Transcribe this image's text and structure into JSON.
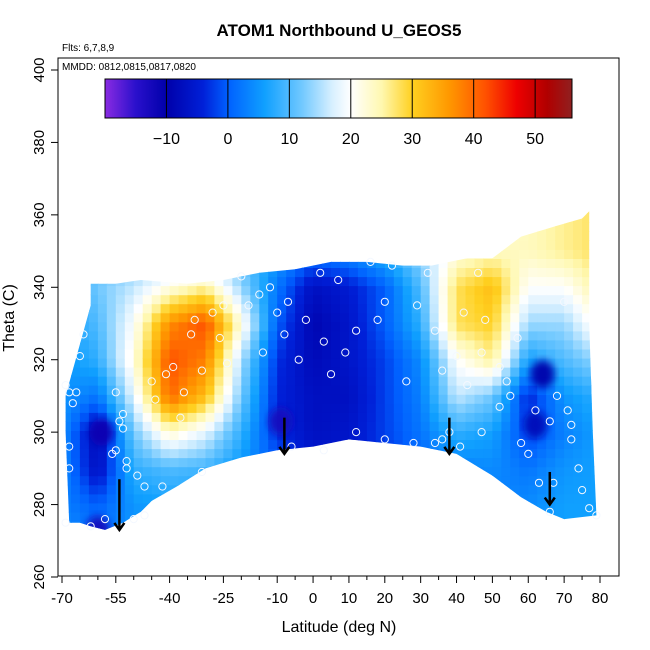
{
  "chart_data": {
    "type": "heatmap",
    "title": "ATOM1 Northbound U_GEOS5",
    "flights_label": "Flts: 6,7,8,9",
    "dates_label": "MMDD: 0812,0815,0817,0820",
    "xlabel": "Latitude (deg N)",
    "ylabel": "Theta (C)",
    "xlim": [
      -70,
      80
    ],
    "ylim": [
      260,
      400
    ],
    "x_ticks": [
      -70,
      -55,
      -40,
      -25,
      -10,
      0,
      10,
      20,
      30,
      40,
      50,
      60,
      70,
      80
    ],
    "y_ticks": [
      260,
      280,
      300,
      320,
      340,
      360,
      380,
      400
    ],
    "x_minor_ticks": [
      -65,
      -60,
      -50,
      -45,
      -35,
      -30,
      -20,
      -15,
      -5,
      5,
      15,
      25,
      35,
      45,
      55,
      65,
      75
    ],
    "colorbar": {
      "range": [
        -20,
        56
      ],
      "ticks": [
        -10,
        0,
        10,
        20,
        30,
        40,
        50
      ],
      "boundaries": [
        -20,
        -10,
        0,
        10,
        20,
        30,
        40,
        50,
        56
      ],
      "stops": [
        {
          "v": -20,
          "c": "#8a2be2"
        },
        {
          "v": -15,
          "c": "#2a10cc"
        },
        {
          "v": -10,
          "c": "#0000aa"
        },
        {
          "v": -4,
          "c": "#0020d8"
        },
        {
          "v": 0,
          "c": "#0060ff"
        },
        {
          "v": 6,
          "c": "#10a0ff"
        },
        {
          "v": 12,
          "c": "#70c8ff"
        },
        {
          "v": 17,
          "c": "#d8f0ff"
        },
        {
          "v": 20,
          "c": "#ffffff"
        },
        {
          "v": 25,
          "c": "#fff8b0"
        },
        {
          "v": 30,
          "c": "#ffd020"
        },
        {
          "v": 36,
          "c": "#ff9800"
        },
        {
          "v": 42,
          "c": "#ff5000"
        },
        {
          "v": 47,
          "c": "#ee0000"
        },
        {
          "v": 52,
          "c": "#b00000"
        },
        {
          "v": 56,
          "c": "#902020"
        }
      ]
    },
    "domain": {
      "top": [
        [
          -62,
          341
        ],
        [
          -55,
          341
        ],
        [
          -48,
          342
        ],
        [
          -35,
          341
        ],
        [
          -25,
          342
        ],
        [
          -15,
          344
        ],
        [
          -5,
          345
        ],
        [
          5,
          347
        ],
        [
          15,
          347
        ],
        [
          25,
          346
        ],
        [
          33,
          346
        ],
        [
          38,
          347
        ],
        [
          43,
          348
        ],
        [
          50,
          348
        ],
        [
          58,
          354
        ],
        [
          68,
          357
        ],
        [
          75,
          359
        ],
        [
          77,
          361
        ],
        [
          77,
          330
        ],
        [
          78,
          300
        ],
        [
          79,
          277
        ]
      ],
      "bottom": [
        [
          79,
          277
        ],
        [
          70,
          276
        ],
        [
          65,
          278
        ],
        [
          58,
          282
        ],
        [
          50,
          288
        ],
        [
          40,
          294
        ],
        [
          30,
          296
        ],
        [
          20,
          297
        ],
        [
          10,
          298
        ],
        [
          0,
          296
        ],
        [
          -10,
          295
        ],
        [
          -20,
          293
        ],
        [
          -30,
          290
        ],
        [
          -38,
          285
        ],
        [
          -45,
          281
        ],
        [
          -48,
          278
        ],
        [
          -53,
          275
        ],
        [
          -58,
          273
        ],
        [
          -62,
          274
        ],
        [
          -65,
          275
        ],
        [
          -68,
          275
        ],
        [
          -69,
          300
        ],
        [
          -69,
          310
        ],
        [
          -62,
          335
        ],
        [
          -62,
          341
        ]
      ]
    },
    "field_grid": {
      "lat": [
        -70,
        -60,
        -50,
        -40,
        -30,
        -20,
        -10,
        0,
        10,
        20,
        30,
        40,
        50,
        60,
        70,
        80
      ],
      "theta": [
        270,
        280,
        290,
        300,
        310,
        320,
        330,
        340,
        350,
        360
      ],
      "u": [
        [
          5,
          2,
          5,
          5,
          5,
          3,
          0,
          -2,
          -4,
          -3,
          0,
          2,
          3,
          4,
          6,
          6
        ],
        [
          3,
          0,
          5,
          6,
          5,
          3,
          0,
          -2,
          -4,
          -3,
          0,
          2,
          3,
          4,
          6,
          6
        ],
        [
          4,
          -7,
          8,
          10,
          9,
          5,
          0,
          -4,
          -5,
          -3,
          0,
          3,
          4,
          2,
          5,
          6
        ],
        [
          4,
          -8,
          12,
          23,
          18,
          8,
          -3,
          -7,
          -6,
          -2,
          2,
          8,
          6,
          -2,
          3,
          6
        ],
        [
          5,
          2,
          18,
          40,
          32,
          12,
          -4,
          -7,
          -7,
          -2,
          3,
          16,
          12,
          -4,
          5,
          8
        ],
        [
          5,
          8,
          22,
          42,
          38,
          15,
          -3,
          -8,
          -6,
          -2,
          4,
          20,
          26,
          6,
          10,
          14
        ],
        [
          6,
          10,
          20,
          37,
          42,
          22,
          0,
          -9,
          -6,
          0,
          8,
          28,
          30,
          14,
          14,
          22
        ],
        [
          6,
          12,
          16,
          22,
          26,
          14,
          2,
          -7,
          -5,
          0,
          10,
          28,
          32,
          20,
          20,
          26
        ],
        [
          6,
          10,
          12,
          12,
          12,
          10,
          6,
          2,
          4,
          8,
          14,
          22,
          24,
          24,
          26,
          28
        ],
        [
          6,
          8,
          10,
          10,
          10,
          10,
          8,
          6,
          8,
          12,
          16,
          20,
          22,
          24,
          26,
          28
        ]
      ]
    },
    "blobs": [
      {
        "lat": -59,
        "theta": 300,
        "v": -11
      },
      {
        "lat": -60,
        "theta": 273,
        "v": -13
      },
      {
        "lat": -9,
        "theta": 303,
        "v": -13
      },
      {
        "lat": 64,
        "theta": 316,
        "v": -10
      },
      {
        "lat": 62,
        "theta": 302,
        "v": -8
      }
    ],
    "observations": [
      [
        -69,
        313
      ],
      [
        -68,
        311
      ],
      [
        -67,
        308
      ],
      [
        -66,
        311
      ],
      [
        -68,
        296
      ],
      [
        -68,
        290
      ],
      [
        -69,
        275
      ],
      [
        -65,
        321
      ],
      [
        -64,
        327
      ],
      [
        -55,
        311
      ],
      [
        -53,
        305
      ],
      [
        -54,
        303
      ],
      [
        -53,
        301
      ],
      [
        -56,
        294
      ],
      [
        -55,
        295
      ],
      [
        -52,
        292
      ],
      [
        -52,
        290
      ],
      [
        -49,
        288
      ],
      [
        -47,
        285
      ],
      [
        -50,
        276
      ],
      [
        -47,
        277
      ],
      [
        -42,
        285
      ],
      [
        -45,
        314
      ],
      [
        -44,
        309
      ],
      [
        -41,
        316
      ],
      [
        -39,
        318
      ],
      [
        -37,
        304
      ],
      [
        -36,
        311
      ],
      [
        -31,
        289
      ],
      [
        -34,
        327
      ],
      [
        -33,
        331
      ],
      [
        -31,
        317
      ],
      [
        -28,
        333
      ],
      [
        -25,
        335
      ],
      [
        -26,
        326
      ],
      [
        -24,
        319
      ],
      [
        -20,
        343
      ],
      [
        -18,
        335
      ],
      [
        -15,
        338
      ],
      [
        -14,
        322
      ],
      [
        -12,
        340
      ],
      [
        -10,
        333
      ],
      [
        -8,
        327
      ],
      [
        -7,
        336
      ],
      [
        -4,
        320
      ],
      [
        -2,
        331
      ],
      [
        2,
        344
      ],
      [
        3,
        325
      ],
      [
        5,
        316
      ],
      [
        7,
        342
      ],
      [
        9,
        322
      ],
      [
        12,
        328
      ],
      [
        16,
        347
      ],
      [
        18,
        331
      ],
      [
        20,
        336
      ],
      [
        22,
        346
      ],
      [
        26,
        314
      ],
      [
        29,
        335
      ],
      [
        32,
        344
      ],
      [
        34,
        328
      ],
      [
        36,
        317
      ],
      [
        34,
        297
      ],
      [
        36,
        298
      ],
      [
        -6,
        296
      ],
      [
        3,
        295
      ],
      [
        12,
        300
      ],
      [
        20,
        298
      ],
      [
        28,
        297
      ],
      [
        41,
        296
      ],
      [
        42,
        333
      ],
      [
        40,
        321
      ],
      [
        43,
        313
      ],
      [
        46,
        344
      ],
      [
        47,
        322
      ],
      [
        48,
        331
      ],
      [
        52,
        318
      ],
      [
        54,
        314
      ],
      [
        57,
        326
      ],
      [
        55,
        310
      ],
      [
        58,
        297
      ],
      [
        60,
        294
      ],
      [
        62,
        306
      ],
      [
        63,
        286
      ],
      [
        66,
        303
      ],
      [
        67,
        286
      ],
      [
        70,
        336
      ],
      [
        68,
        310
      ],
      [
        71,
        306
      ],
      [
        72,
        302
      ],
      [
        72,
        298
      ],
      [
        74,
        290
      ],
      [
        75,
        284
      ],
      [
        77,
        279
      ],
      [
        79,
        277
      ],
      [
        -62,
        274
      ],
      [
        -58,
        276
      ],
      [
        66,
        278
      ],
      [
        52,
        307
      ],
      [
        47,
        300
      ],
      [
        38,
        300
      ]
    ],
    "arrows": [
      {
        "lat": -54,
        "from": 287,
        "to": 273
      },
      {
        "lat": -8,
        "from": 304,
        "to": 294
      },
      {
        "lat": 38,
        "from": 304,
        "to": 294
      },
      {
        "lat": 66,
        "from": 289,
        "to": 280
      }
    ]
  }
}
